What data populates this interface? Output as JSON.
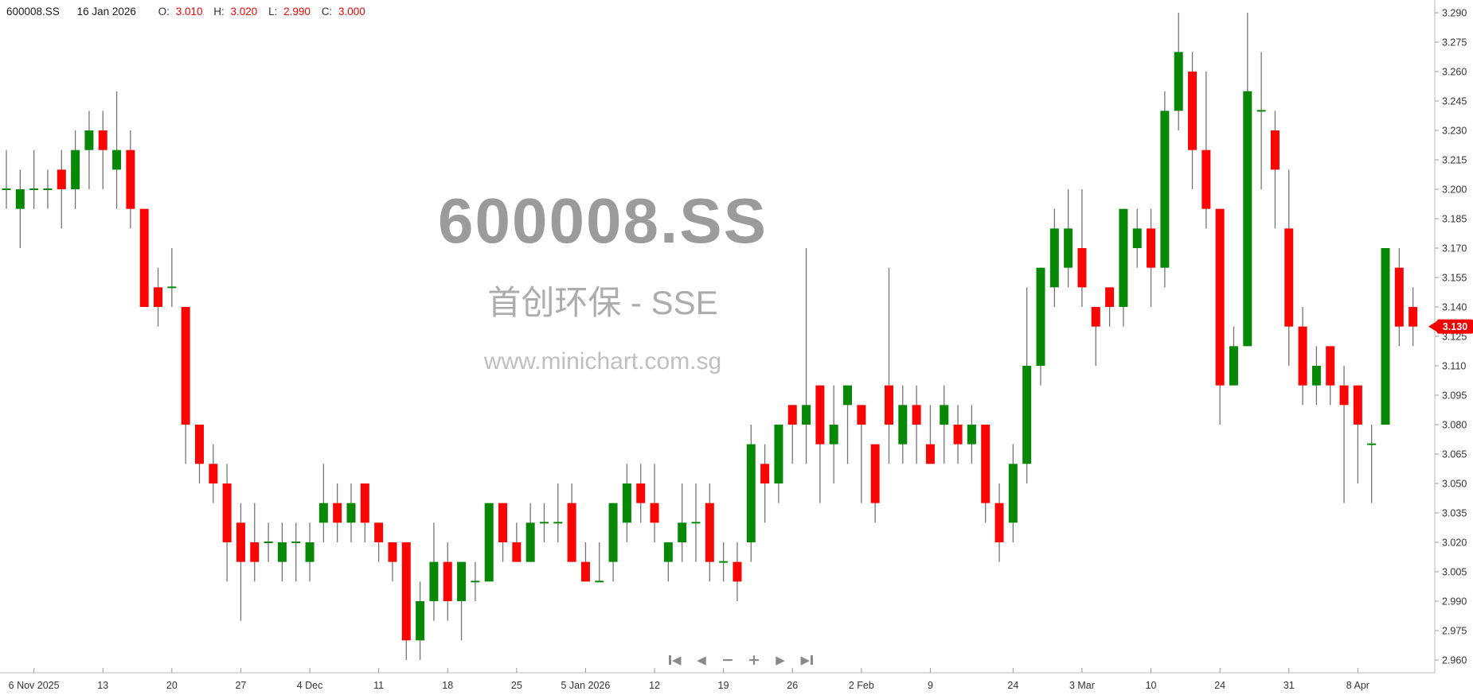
{
  "header": {
    "symbol": "600008.SS",
    "date": "16 Jan 2026",
    "open_label": "O:",
    "open": "3.010",
    "high_label": "H:",
    "high": "3.020",
    "low_label": "L:",
    "low": "2.990",
    "close_label": "C:",
    "close": "3.000",
    "value_color": "#f00505"
  },
  "watermark": {
    "title": "600008.SS",
    "subtitle": "首创环保 - SSE",
    "url": "www.minichart.com.sg"
  },
  "price_badge": {
    "value": "3.130",
    "color": "#f20000"
  },
  "nav": {
    "buttons": [
      {
        "name": "skip-to-start",
        "glyph": "◀",
        "bar": "left"
      },
      {
        "name": "step-back",
        "glyph": "◀"
      },
      {
        "name": "zoom-out",
        "glyph": "−"
      },
      {
        "name": "zoom-in",
        "glyph": "+"
      },
      {
        "name": "step-forward",
        "glyph": "▶"
      },
      {
        "name": "skip-to-end",
        "glyph": "▶",
        "bar": "right"
      }
    ]
  },
  "chart_data": {
    "type": "candlestick",
    "title": "600008.SS",
    "subtitle": "首创环保 - SSE",
    "up_color": "#078807",
    "down_color": "#fb0404",
    "wick_color": "#757575",
    "axis_color": "#b8b8b8",
    "grid": false,
    "ylim": [
      2.9535,
      3.2965
    ],
    "y_ticks": [
      "3.290",
      "3.275",
      "3.260",
      "3.245",
      "3.230",
      "3.215",
      "3.200",
      "3.185",
      "3.170",
      "3.155",
      "3.140",
      "3.125",
      "3.110",
      "3.095",
      "3.080",
      "3.065",
      "3.050",
      "3.035",
      "3.020",
      "3.005",
      "2.990",
      "2.975",
      "2.960"
    ],
    "x_ticks": [
      {
        "i": 2,
        "label": "6 Nov 2025"
      },
      {
        "i": 7,
        "label": "13"
      },
      {
        "i": 12,
        "label": "20"
      },
      {
        "i": 17,
        "label": "27"
      },
      {
        "i": 22,
        "label": "4 Dec"
      },
      {
        "i": 27,
        "label": "11"
      },
      {
        "i": 32,
        "label": "18"
      },
      {
        "i": 37,
        "label": "25"
      },
      {
        "i": 42,
        "label": "5 Jan 2026"
      },
      {
        "i": 47,
        "label": "12"
      },
      {
        "i": 52,
        "label": "19"
      },
      {
        "i": 57,
        "label": "26"
      },
      {
        "i": 62,
        "label": "2 Feb"
      },
      {
        "i": 67,
        "label": "9"
      },
      {
        "i": 73,
        "label": "24"
      },
      {
        "i": 78,
        "label": "3 Mar"
      },
      {
        "i": 83,
        "label": "10"
      },
      {
        "i": 88,
        "label": "24"
      },
      {
        "i": 93,
        "label": "31"
      },
      {
        "i": 98,
        "label": "8 Apr"
      }
    ],
    "candles": [
      [
        3.2,
        3.22,
        3.19,
        3.2
      ],
      [
        3.19,
        3.21,
        3.17,
        3.2
      ],
      [
        3.2,
        3.22,
        3.19,
        3.2
      ],
      [
        3.2,
        3.21,
        3.19,
        3.2
      ],
      [
        3.21,
        3.22,
        3.18,
        3.2
      ],
      [
        3.2,
        3.23,
        3.19,
        3.22
      ],
      [
        3.22,
        3.24,
        3.2,
        3.23
      ],
      [
        3.23,
        3.24,
        3.2,
        3.22
      ],
      [
        3.21,
        3.25,
        3.19,
        3.22
      ],
      [
        3.22,
        3.23,
        3.18,
        3.19
      ],
      [
        3.19,
        3.19,
        3.14,
        3.14
      ],
      [
        3.15,
        3.16,
        3.13,
        3.14
      ],
      [
        3.15,
        3.17,
        3.14,
        3.15
      ],
      [
        3.14,
        3.14,
        3.06,
        3.08
      ],
      [
        3.08,
        3.08,
        3.05,
        3.06
      ],
      [
        3.06,
        3.07,
        3.04,
        3.05
      ],
      [
        3.05,
        3.06,
        3.0,
        3.02
      ],
      [
        3.03,
        3.04,
        2.98,
        3.01
      ],
      [
        3.02,
        3.04,
        3.0,
        3.01
      ],
      [
        3.02,
        3.03,
        3.01,
        3.02
      ],
      [
        3.01,
        3.03,
        3.0,
        3.02
      ],
      [
        3.02,
        3.03,
        3.0,
        3.02
      ],
      [
        3.01,
        3.03,
        3.0,
        3.02
      ],
      [
        3.03,
        3.06,
        3.02,
        3.04
      ],
      [
        3.04,
        3.05,
        3.02,
        3.03
      ],
      [
        3.03,
        3.05,
        3.02,
        3.04
      ],
      [
        3.05,
        3.05,
        3.02,
        3.03
      ],
      [
        3.03,
        3.03,
        3.01,
        3.02
      ],
      [
        3.02,
        3.02,
        3.0,
        3.01
      ],
      [
        3.02,
        3.02,
        2.96,
        2.97
      ],
      [
        2.97,
        3.0,
        2.96,
        2.99
      ],
      [
        2.99,
        3.03,
        2.98,
        3.01
      ],
      [
        3.01,
        3.02,
        2.98,
        2.99
      ],
      [
        2.99,
        3.01,
        2.97,
        3.01
      ],
      [
        3.0,
        3.01,
        2.99,
        3.0
      ],
      [
        3.0,
        3.04,
        3.0,
        3.04
      ],
      [
        3.04,
        3.04,
        3.01,
        3.02
      ],
      [
        3.02,
        3.03,
        3.01,
        3.01
      ],
      [
        3.01,
        3.04,
        3.01,
        3.03
      ],
      [
        3.03,
        3.04,
        3.02,
        3.03
      ],
      [
        3.03,
        3.05,
        3.02,
        3.03
      ],
      [
        3.04,
        3.05,
        3.01,
        3.01
      ],
      [
        3.01,
        3.02,
        3.0,
        3.0
      ],
      [
        3.0,
        3.02,
        3.0,
        3.0
      ],
      [
        3.01,
        3.04,
        3.0,
        3.04
      ],
      [
        3.03,
        3.06,
        3.02,
        3.05
      ],
      [
        3.05,
        3.06,
        3.03,
        3.04
      ],
      [
        3.04,
        3.06,
        3.02,
        3.03
      ],
      [
        3.01,
        3.02,
        3.0,
        3.02
      ],
      [
        3.02,
        3.05,
        3.01,
        3.03
      ],
      [
        3.03,
        3.05,
        3.01,
        3.03
      ],
      [
        3.04,
        3.05,
        3.0,
        3.01
      ],
      [
        3.01,
        3.02,
        3.0,
        3.01
      ],
      [
        3.01,
        3.02,
        2.99,
        3.0
      ],
      [
        3.02,
        3.08,
        3.01,
        3.07
      ],
      [
        3.06,
        3.07,
        3.03,
        3.05
      ],
      [
        3.05,
        3.08,
        3.04,
        3.08
      ],
      [
        3.09,
        3.09,
        3.06,
        3.08
      ],
      [
        3.08,
        3.17,
        3.06,
        3.09
      ],
      [
        3.1,
        3.1,
        3.04,
        3.07
      ],
      [
        3.07,
        3.1,
        3.05,
        3.08
      ],
      [
        3.09,
        3.1,
        3.06,
        3.1
      ],
      [
        3.09,
        3.09,
        3.04,
        3.08
      ],
      [
        3.07,
        3.07,
        3.03,
        3.04
      ],
      [
        3.1,
        3.16,
        3.06,
        3.08
      ],
      [
        3.07,
        3.1,
        3.06,
        3.09
      ],
      [
        3.09,
        3.1,
        3.06,
        3.08
      ],
      [
        3.07,
        3.09,
        3.06,
        3.06
      ],
      [
        3.08,
        3.1,
        3.06,
        3.09
      ],
      [
        3.08,
        3.09,
        3.06,
        3.07
      ],
      [
        3.07,
        3.09,
        3.06,
        3.08
      ],
      [
        3.08,
        3.08,
        3.03,
        3.04
      ],
      [
        3.04,
        3.05,
        3.01,
        3.02
      ],
      [
        3.03,
        3.07,
        3.02,
        3.06
      ],
      [
        3.06,
        3.15,
        3.05,
        3.11
      ],
      [
        3.11,
        3.16,
        3.1,
        3.16
      ],
      [
        3.15,
        3.19,
        3.14,
        3.18
      ],
      [
        3.16,
        3.2,
        3.15,
        3.18
      ],
      [
        3.17,
        3.2,
        3.14,
        3.15
      ],
      [
        3.14,
        3.14,
        3.11,
        3.13
      ],
      [
        3.15,
        3.15,
        3.13,
        3.14
      ],
      [
        3.14,
        3.19,
        3.13,
        3.19
      ],
      [
        3.17,
        3.19,
        3.16,
        3.18
      ],
      [
        3.18,
        3.19,
        3.14,
        3.16
      ],
      [
        3.16,
        3.25,
        3.15,
        3.24
      ],
      [
        3.24,
        3.29,
        3.23,
        3.27
      ],
      [
        3.26,
        3.27,
        3.2,
        3.22
      ],
      [
        3.22,
        3.26,
        3.18,
        3.19
      ],
      [
        3.19,
        3.19,
        3.08,
        3.1
      ],
      [
        3.1,
        3.13,
        3.1,
        3.12
      ],
      [
        3.12,
        3.29,
        3.12,
        3.25
      ],
      [
        3.24,
        3.27,
        3.2,
        3.24
      ],
      [
        3.23,
        3.24,
        3.18,
        3.21
      ],
      [
        3.18,
        3.21,
        3.11,
        3.13
      ],
      [
        3.13,
        3.14,
        3.09,
        3.1
      ],
      [
        3.1,
        3.12,
        3.09,
        3.11
      ],
      [
        3.12,
        3.12,
        3.09,
        3.1
      ],
      [
        3.1,
        3.11,
        3.04,
        3.09
      ],
      [
        3.1,
        3.1,
        3.05,
        3.08
      ],
      [
        3.07,
        3.08,
        3.04,
        3.07
      ],
      [
        3.08,
        3.17,
        3.08,
        3.17
      ],
      [
        3.16,
        3.17,
        3.12,
        3.13
      ],
      [
        3.14,
        3.15,
        3.12,
        3.13
      ]
    ]
  }
}
